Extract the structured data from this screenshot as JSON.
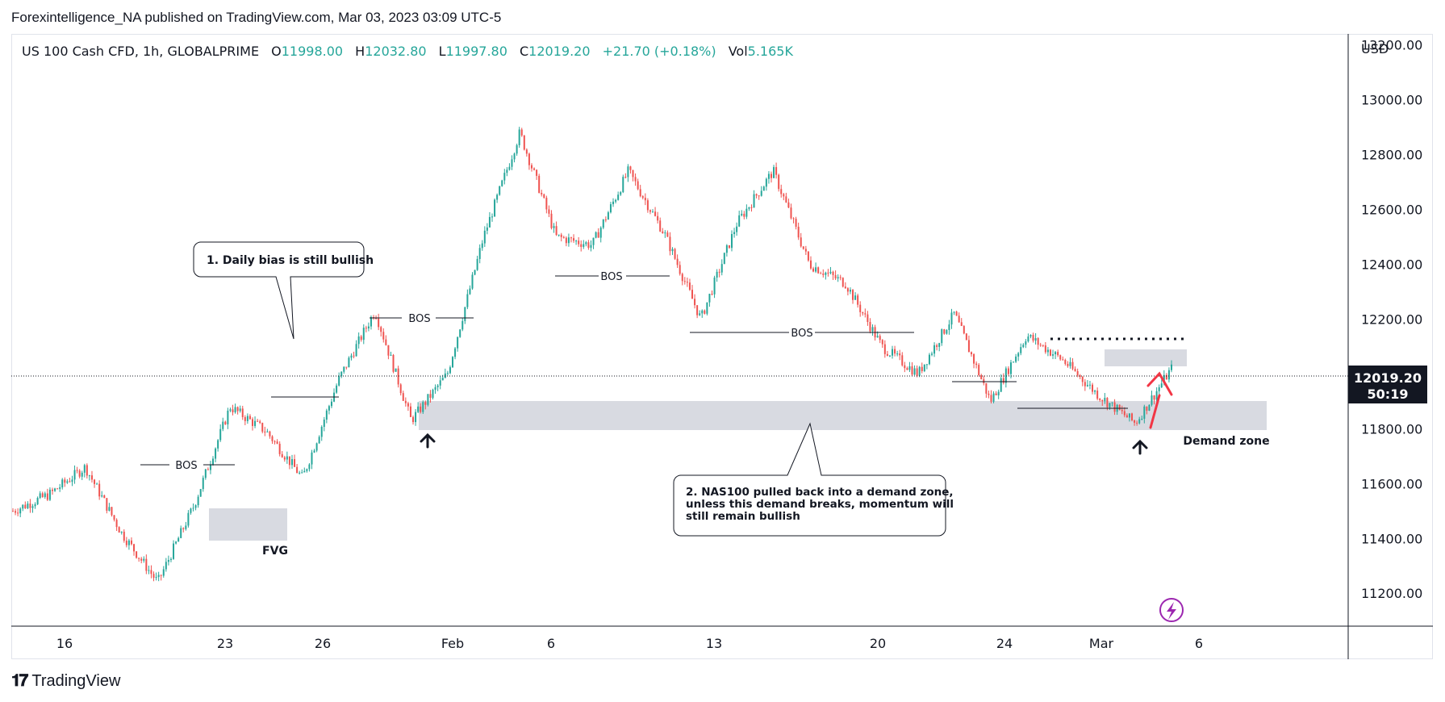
{
  "publish_line": "Forexintelligence_NA published on TradingView.com, Mar 03, 2023 03:09 UTC-5",
  "footer": {
    "brand": "TradingView"
  },
  "colors": {
    "up": "#26a69a",
    "down": "#ef5350",
    "zone": "#d1d4dc",
    "axis_text": "#131722",
    "price_tag_bg": "#131722",
    "annotation_arrow": "#f23645",
    "lightning": "#9c27b0"
  },
  "legend": {
    "symbol": "US 100 Cash CFD, 1h, GLOBALPRIME",
    "o_label": "O",
    "o_value": "11998.00",
    "h_label": "H",
    "h_value": "12032.80",
    "l_label": "L",
    "l_value": "11997.80",
    "c_label": "C",
    "c_value": "12019.20",
    "change": "+21.70 (+0.18%)",
    "vol_label": "Vol",
    "vol_value": "5.165K"
  },
  "price_axis": {
    "currency": "USD",
    "last_price": "12019.20",
    "countdown": "50:19"
  },
  "annotations": {
    "bos": [
      "BOS",
      "BOS",
      "BOS",
      "BOS"
    ],
    "fvg": "FVG",
    "demand_zone": "Demand zone",
    "callout_1": "1. Daily bias is still bullish",
    "callout_2_lines": [
      "2. NAS100 pulled back into a demand zone,",
      "unless this demand breaks, momentum will",
      "still remain bullish"
    ]
  },
  "chart_data": {
    "type": "candlestick",
    "title": "US 100 Cash CFD, 1h, GLOBALPRIME",
    "y_axis": {
      "ticks": [
        11200,
        11400,
        11600,
        11800,
        12000,
        12200,
        12400,
        12600,
        12800,
        13000,
        13200
      ],
      "tick_labels": [
        "11200.00",
        "11400.00",
        "11600.00",
        "11800.00",
        "12000.00",
        "12200.00",
        "12400.00",
        "12600.00",
        "12800.00",
        "13000.00",
        "13200.00"
      ],
      "ylim": [
        11080,
        13240
      ]
    },
    "x_axis": {
      "tick_labels": [
        "16",
        "23",
        "26",
        "Feb",
        "6",
        "13",
        "20",
        "24",
        "Mar",
        "6"
      ]
    },
    "close_path": [
      [
        "Jan 13",
        11500
      ],
      [
        "Jan 16",
        11560
      ],
      [
        "Jan 18",
        11660
      ],
      [
        "Jan 19",
        11420
      ],
      [
        "Jan 20",
        11240
      ],
      [
        "Jan 23",
        11520
      ],
      [
        "Jan 24",
        11880
      ],
      [
        "Jan 25",
        11790
      ],
      [
        "Jan 26",
        11620
      ],
      [
        "Jan 27",
        11980
      ],
      [
        "Jan 30",
        12230
      ],
      [
        "Jan 31",
        11830
      ],
      [
        "Feb 1",
        12000
      ],
      [
        "Feb 2",
        12500
      ],
      [
        "Feb 3",
        12880
      ],
      [
        "Feb 6",
        12500
      ],
      [
        "Feb 8",
        12470
      ],
      [
        "Feb 9",
        12740
      ],
      [
        "Feb 10",
        12510
      ],
      [
        "Feb 13",
        12200
      ],
      [
        "Feb 15",
        12550
      ],
      [
        "Feb 16",
        12740
      ],
      [
        "Feb 17",
        12400
      ],
      [
        "Feb 20",
        12330
      ],
      [
        "Feb 21",
        12100
      ],
      [
        "Feb 22",
        12000
      ],
      [
        "Feb 23",
        12220
      ],
      [
        "Feb 24",
        11900
      ],
      [
        "Feb 27",
        12140
      ],
      [
        "Feb 28",
        12050
      ],
      [
        "Mar 1",
        11920
      ],
      [
        "Mar 2",
        11820
      ],
      [
        "Mar 3",
        12019.2
      ]
    ],
    "last_bar": {
      "open": 11998.0,
      "high": 12032.8,
      "low": 11997.8,
      "close": 12019.2,
      "change": 21.7,
      "change_pct": 0.18,
      "volume": "5.165K"
    },
    "zones": [
      {
        "label": "FVG",
        "from": 11400,
        "to": 11520
      },
      {
        "label": "Demand zone",
        "from": 11810,
        "to": 11920
      },
      {
        "label": "",
        "from": 12040,
        "to": 12110
      }
    ],
    "levels": [
      {
        "label": "BOS",
        "price": 11670
      },
      {
        "label": "BOS",
        "price": 12240
      },
      {
        "label": "BOS",
        "price": 12400
      },
      {
        "label": "BOS",
        "price": 12180
      }
    ],
    "grid": false
  }
}
